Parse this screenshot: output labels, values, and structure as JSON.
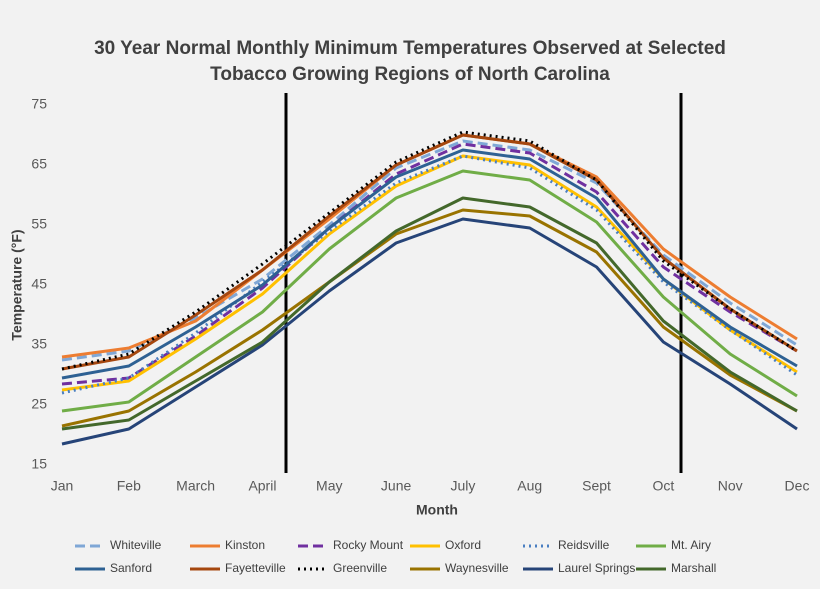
{
  "chart_data": {
    "type": "line",
    "title": [
      "30 Year Normal Monthly Minimum Temperatures Observed at Selected",
      "Tobacco Growing Regions of North Carolina"
    ],
    "x_label": "Month",
    "y_label": "Temperature (°F)",
    "categories": [
      "Jan",
      "Feb",
      "March",
      "April",
      "May",
      "June",
      "July",
      "Aug",
      "Sept",
      "Oct",
      "Nov",
      "Dec"
    ],
    "ylim": [
      15,
      75
    ],
    "yticks": [
      15,
      25,
      35,
      45,
      55,
      65,
      75
    ],
    "grid": false,
    "series": [
      {
        "name": "Whiteville",
        "color": "#7fa7d6",
        "dash": "dashed",
        "values": [
          32.5,
          34,
          39.5,
          46,
          55,
          64.5,
          69,
          67.5,
          62,
          50,
          42,
          35
        ]
      },
      {
        "name": "Kinston",
        "color": "#ed7d31",
        "dash": "solid",
        "values": [
          33,
          34.5,
          39,
          47.5,
          56,
          65,
          70,
          68.5,
          63,
          51,
          43,
          36
        ]
      },
      {
        "name": "Rocky Mount",
        "color": "#7030a0",
        "dash": "dashed",
        "values": [
          28.5,
          29.5,
          36.5,
          44.5,
          54.5,
          63.5,
          68.5,
          67,
          60.5,
          48,
          40.5,
          34
        ]
      },
      {
        "name": "Oxford",
        "color": "#ffc000",
        "dash": "solid",
        "values": [
          27.5,
          29,
          36,
          43.5,
          53.5,
          61.5,
          66.5,
          65,
          58,
          46,
          37.5,
          30.5
        ]
      },
      {
        "name": "Reidsville",
        "color": "#4a7fc1",
        "dash": "dotted",
        "values": [
          27,
          29.5,
          37,
          45.5,
          54,
          62,
          66.5,
          64.5,
          57.5,
          45.5,
          37.5,
          30
        ]
      },
      {
        "name": "Mt. Airy",
        "color": "#70ad47",
        "dash": "solid",
        "values": [
          24,
          25.5,
          33,
          40.5,
          51,
          59.5,
          64,
          62.5,
          55.5,
          43,
          33.5,
          26.5
        ]
      },
      {
        "name": "Sanford",
        "color": "#2e6193",
        "dash": "solid",
        "values": [
          29.5,
          31.5,
          38,
          45,
          54.5,
          63,
          67.5,
          66,
          59.5,
          46,
          38,
          31.5
        ]
      },
      {
        "name": "Fayetteville",
        "color": "#a5470f",
        "dash": "solid",
        "values": [
          31,
          33,
          40,
          47.5,
          56.5,
          65,
          70,
          68.5,
          62.5,
          49.5,
          41,
          34
        ]
      },
      {
        "name": "Greenville",
        "color": "#000000",
        "dash": "dotted",
        "values": [
          31,
          33.5,
          40.5,
          48.5,
          57,
          65.5,
          70.5,
          69,
          62.5,
          49,
          41,
          34
        ]
      },
      {
        "name": "Waynesville",
        "color": "#997300",
        "dash": "solid",
        "values": [
          21.5,
          24,
          30.5,
          37.5,
          45.5,
          53.5,
          57.5,
          56.5,
          50.5,
          38,
          30,
          24
        ]
      },
      {
        "name": "Laurel Springs",
        "color": "#264478",
        "dash": "solid",
        "values": [
          18.5,
          21,
          28,
          35,
          44,
          52,
          56,
          54.5,
          48,
          35.5,
          28.5,
          21
        ]
      },
      {
        "name": "Marshall",
        "color": "#43682b",
        "dash": "solid",
        "values": [
          21,
          22.5,
          29,
          35.5,
          45.5,
          54,
          59.5,
          58,
          52,
          39,
          30.5,
          24
        ]
      }
    ]
  }
}
